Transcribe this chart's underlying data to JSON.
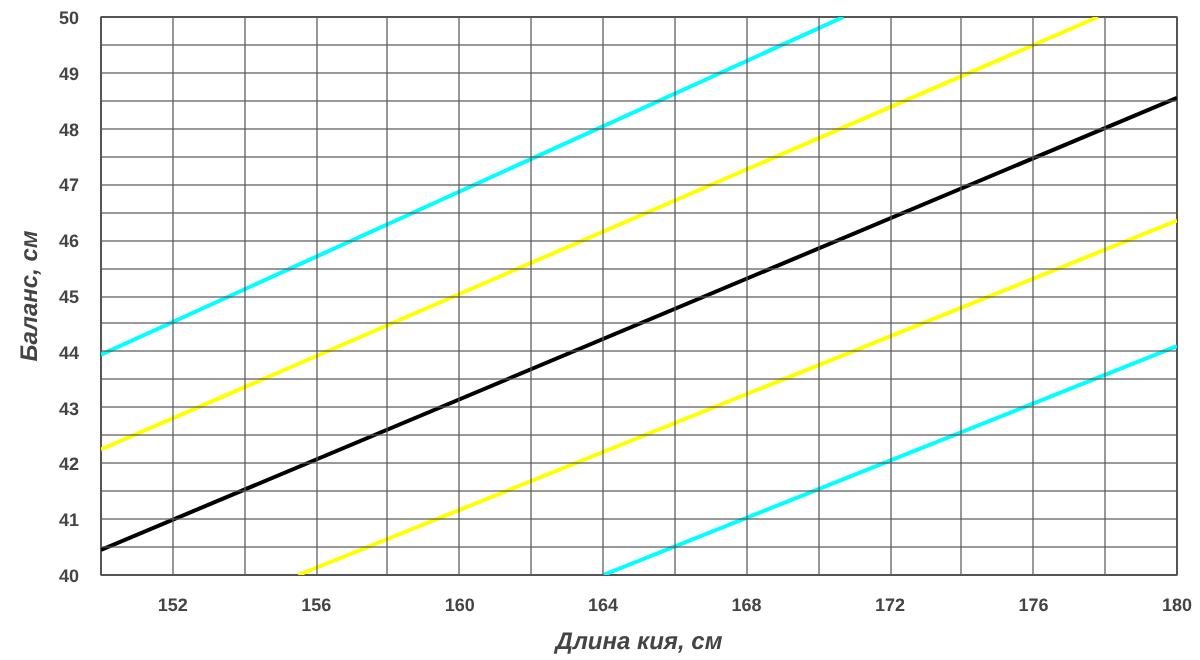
{
  "chart_data": {
    "type": "line",
    "xlabel": "Длина кия, см",
    "ylabel": "Баланс, см",
    "xlim": [
      150,
      180
    ],
    "ylim": [
      40,
      50
    ],
    "xticks": [
      {
        "value": 150,
        "label": null
      },
      152,
      {
        "value": 154,
        "label": null
      },
      156,
      {
        "value": 158,
        "label": null
      },
      160,
      {
        "value": 162,
        "label": null
      },
      164,
      {
        "value": 166,
        "label": null
      },
      168,
      {
        "value": 170,
        "label": null
      },
      172,
      {
        "value": 174,
        "label": null
      },
      176,
      {
        "value": 178,
        "label": null
      },
      180
    ],
    "yticks": [
      40,
      {
        "value": 40.5,
        "label": null
      },
      41,
      {
        "value": 41.5,
        "label": null
      },
      42,
      {
        "value": 42.5,
        "label": null
      },
      43,
      {
        "value": 43.5,
        "label": null
      },
      44,
      {
        "value": 44.5,
        "label": null
      },
      45,
      {
        "value": 45.5,
        "label": null
      },
      46,
      {
        "value": 46.5,
        "label": null
      },
      47,
      {
        "value": 47.5,
        "label": null
      },
      48,
      {
        "value": 48.5,
        "label": null
      },
      49,
      {
        "value": 49.5,
        "label": null
      },
      50
    ],
    "grid": true,
    "series": [
      {
        "color": "#00ffff",
        "x": [
          150,
          170.7
        ],
        "values": [
          43.95,
          50
        ]
      },
      {
        "color": "#ffff00",
        "x": [
          150,
          177.8
        ],
        "values": [
          42.25,
          50
        ]
      },
      {
        "color": "#000000",
        "x": [
          150,
          180
        ],
        "values": [
          40.45,
          48.55
        ]
      },
      {
        "color": "#ffff00",
        "x": [
          155.5,
          180
        ],
        "values": [
          40,
          46.35
        ]
      },
      {
        "color": "#00ffff",
        "x": [
          164,
          180
        ],
        "values": [
          40,
          44.1
        ]
      }
    ]
  }
}
